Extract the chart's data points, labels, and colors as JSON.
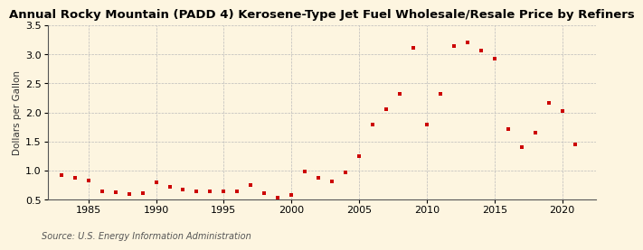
{
  "title": "Annual Rocky Mountain (PADD 4) Kerosene-Type Jet Fuel Wholesale/Resale Price by Refiners",
  "ylabel": "Dollars per Gallon",
  "source": "Source: U.S. Energy Information Administration",
  "background_color": "#fdf5e0",
  "plot_bg_color": "#fdf5e0",
  "marker_color": "#cc0000",
  "years": [
    1983,
    1984,
    1985,
    1986,
    1987,
    1988,
    1989,
    1990,
    1991,
    1992,
    1993,
    1994,
    1995,
    1996,
    1997,
    1998,
    1999,
    2000,
    2001,
    2002,
    2003,
    2004,
    2005,
    2006,
    2007,
    2008,
    2009,
    2010,
    2011,
    2012,
    2013,
    2014,
    2015,
    2016,
    2017,
    2018,
    2019,
    2020,
    2021
  ],
  "values": [
    0.92,
    0.87,
    0.83,
    0.65,
    0.63,
    0.6,
    0.62,
    0.8,
    0.72,
    0.68,
    0.65,
    0.64,
    0.65,
    0.65,
    0.75,
    0.62,
    0.53,
    0.58,
    0.98,
    0.87,
    0.82,
    0.97,
    1.25,
    1.8,
    2.06,
    2.32,
    3.12,
    1.8,
    2.32,
    3.15,
    3.2,
    3.07,
    2.93,
    1.72,
    1.4,
    1.65,
    2.17,
    2.02,
    1.45
  ],
  "ylim": [
    0.5,
    3.5
  ],
  "yticks": [
    0.5,
    1.0,
    1.5,
    2.0,
    2.5,
    3.0,
    3.5
  ],
  "xlim": [
    1982.0,
    2022.5
  ],
  "xticks": [
    1985,
    1990,
    1995,
    2000,
    2005,
    2010,
    2015,
    2020
  ],
  "title_fontsize": 9.5,
  "ylabel_fontsize": 7.5,
  "tick_fontsize": 8,
  "source_fontsize": 7
}
